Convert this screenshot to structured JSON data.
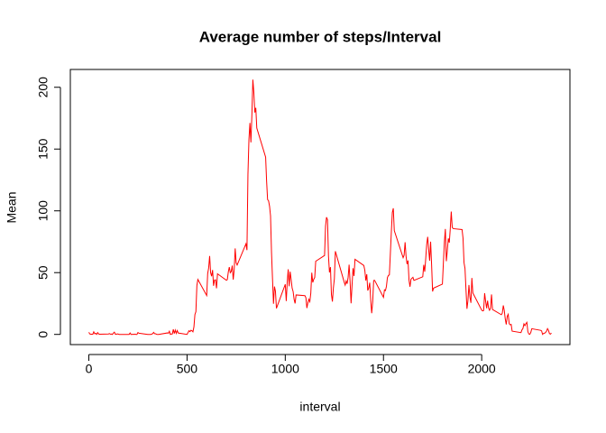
{
  "chart_data": {
    "type": "line",
    "title": "Average number of steps/Interval",
    "x_label": "interval",
    "y_label": "Mean",
    "color": "#ff0000",
    "x": [
      0,
      5,
      10,
      15,
      20,
      25,
      30,
      35,
      40,
      45,
      50,
      55,
      100,
      105,
      110,
      115,
      120,
      125,
      130,
      135,
      140,
      145,
      150,
      155,
      200,
      205,
      210,
      215,
      220,
      225,
      230,
      235,
      240,
      245,
      250,
      255,
      300,
      305,
      310,
      315,
      320,
      325,
      330,
      335,
      340,
      345,
      350,
      355,
      400,
      405,
      410,
      415,
      420,
      425,
      430,
      435,
      440,
      445,
      450,
      455,
      500,
      505,
      510,
      515,
      520,
      525,
      530,
      535,
      540,
      545,
      550,
      555,
      600,
      605,
      610,
      615,
      620,
      625,
      630,
      635,
      640,
      645,
      650,
      655,
      700,
      705,
      710,
      715,
      720,
      725,
      730,
      735,
      740,
      745,
      750,
      755,
      800,
      805,
      810,
      815,
      820,
      825,
      830,
      835,
      840,
      845,
      850,
      855,
      900,
      905,
      910,
      915,
      920,
      925,
      930,
      935,
      940,
      945,
      950,
      955,
      1000,
      1005,
      1010,
      1015,
      1020,
      1025,
      1030,
      1035,
      1040,
      1045,
      1050,
      1055,
      1100,
      1105,
      1110,
      1115,
      1120,
      1125,
      1130,
      1135,
      1140,
      1145,
      1150,
      1155,
      1200,
      1205,
      1210,
      1215,
      1220,
      1225,
      1230,
      1235,
      1240,
      1245,
      1250,
      1255,
      1300,
      1305,
      1310,
      1315,
      1320,
      1325,
      1330,
      1335,
      1340,
      1345,
      1350,
      1355,
      1400,
      1405,
      1410,
      1415,
      1420,
      1425,
      1430,
      1435,
      1440,
      1445,
      1450,
      1455,
      1500,
      1505,
      1510,
      1515,
      1520,
      1525,
      1530,
      1535,
      1540,
      1545,
      1550,
      1555,
      1600,
      1605,
      1610,
      1615,
      1620,
      1625,
      1630,
      1635,
      1640,
      1645,
      1650,
      1655,
      1700,
      1705,
      1710,
      1715,
      1720,
      1725,
      1730,
      1735,
      1740,
      1745,
      1750,
      1755,
      1800,
      1805,
      1810,
      1815,
      1820,
      1825,
      1830,
      1835,
      1840,
      1845,
      1850,
      1855,
      1900,
      1905,
      1910,
      1915,
      1920,
      1925,
      1930,
      1935,
      1940,
      1945,
      1950,
      1955,
      2000,
      2005,
      2010,
      2015,
      2020,
      2025,
      2030,
      2035,
      2040,
      2045,
      2050,
      2055,
      2100,
      2105,
      2110,
      2115,
      2120,
      2125,
      2130,
      2135,
      2140,
      2145,
      2150,
      2155,
      2200,
      2205,
      2210,
      2215,
      2220,
      2225,
      2230,
      2235,
      2240,
      2245,
      2250,
      2255,
      2300,
      2305,
      2310,
      2315,
      2320,
      2325,
      2330,
      2335,
      2340,
      2345,
      2350,
      2355
    ],
    "values": [
      1.717,
      0.34,
      0.132,
      0.151,
      0.075,
      2.094,
      0.528,
      0.868,
      0,
      1.472,
      0.302,
      0.132,
      0.321,
      0.679,
      0.151,
      0.34,
      0,
      1.113,
      1.83,
      0.17,
      0.17,
      0.377,
      0.264,
      0,
      0,
      0,
      1.132,
      0,
      0,
      0.132,
      0,
      0.226,
      0,
      0,
      1.547,
      0.943,
      0,
      0,
      0,
      0,
      0.208,
      0.623,
      1.623,
      0.585,
      0.491,
      0.075,
      0,
      0,
      1.189,
      0.943,
      2.566,
      0,
      0.34,
      0.358,
      4.113,
      0.66,
      3.491,
      0.83,
      3.113,
      1.113,
      0,
      1.566,
      3,
      2.245,
      3.321,
      2.962,
      2.094,
      6.057,
      16.019,
      18.34,
      39.453,
      44.491,
      31.49,
      49.26,
      53.77,
      63.45,
      49.96,
      47.08,
      52.15,
      39.34,
      44.02,
      44.17,
      37.36,
      49.04,
      43.81,
      44.38,
      50.51,
      54.51,
      49.92,
      50.98,
      55.68,
      44.32,
      52.26,
      69.55,
      57.85,
      56.15,
      73.38,
      68.21,
      129.43,
      157.53,
      171.15,
      155.4,
      177.3,
      206.17,
      195.92,
      179.57,
      183.4,
      167.02,
      143.45,
      124.04,
      109.11,
      108.11,
      103.72,
      95.96,
      66.21,
      45.23,
      24.79,
      38.75,
      34.98,
      21.06,
      40.57,
      26.98,
      42.42,
      52.66,
      38.92,
      50.79,
      44.28,
      37.42,
      34.7,
      28.34,
      25.09,
      31.94,
      31.36,
      29.68,
      21.32,
      25.55,
      28.38,
      26.47,
      33.43,
      49.98,
      42.04,
      44.6,
      46.04,
      59.19,
      63.87,
      87.7,
      94.85,
      92.77,
      63.4,
      50.17,
      54.47,
      32.42,
      26.53,
      37.74,
      45.06,
      67.28,
      42.34,
      39.89,
      43.26,
      40.98,
      46.25,
      56.43,
      42.75,
      25.13,
      39.96,
      53.55,
      47.32,
      60.81,
      55.75,
      51.96,
      43.58,
      48.7,
      35.47,
      37.55,
      41.85,
      27.51,
      17.11,
      26.08,
      43.62,
      43.77,
      30.02,
      36.08,
      35.49,
      38.85,
      45.96,
      47.75,
      48.13,
      65.32,
      82.91,
      98.66,
      102.11,
      83.96,
      62.13,
      64.13,
      74.55,
      63.17,
      56.91,
      59.77,
      43.87,
      38.57,
      44.66,
      45.45,
      46.21,
      43.68,
      46.62,
      56.3,
      50.72,
      61.23,
      72.72,
      78.94,
      68.94,
      59.66,
      75.09,
      56.51,
      34.77,
      37.45,
      40.68,
      58.02,
      74.7,
      85.32,
      59.26,
      67.77,
      77.7,
      74.25,
      85.34,
      99.45,
      86.58,
      85.6,
      84.87,
      77.83,
      58.04,
      53.36,
      36.32,
      20.72,
      27.4,
      40.02,
      30.21,
      25.55,
      45.66,
      33.53,
      19.62,
      19.02,
      19.34,
      33.34,
      26.81,
      21.17,
      27.3,
      21.34,
      19.55,
      21.32,
      32.3,
      20.15,
      15.94,
      17.23,
      23.45,
      19.25,
      12.45,
      8.02,
      14.66,
      16.3,
      8.68,
      7.79,
      8.13,
      2.62,
      1.45,
      3.68,
      4.81,
      8.51,
      7.08,
      8.7,
      9.75,
      2.21,
      0.32,
      0.11,
      1.6,
      4.6,
      3.3,
      2.85,
      0,
      0.83,
      0.96,
      1.58,
      2.6,
      4.7,
      3.3,
      0.64,
      0.23,
      1.08
    ],
    "xlim": [
      -94.2,
      2449.2
    ],
    "ylim": [
      -8.25,
      214.42
    ],
    "xticks": [
      0,
      500,
      1000,
      1500,
      2000
    ],
    "yticks": [
      0,
      50,
      100,
      150,
      200
    ]
  }
}
